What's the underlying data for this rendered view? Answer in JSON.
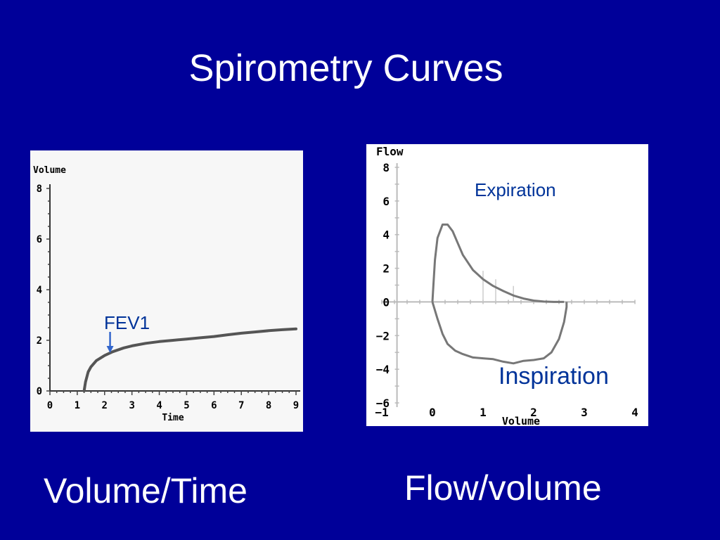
{
  "title": "Spirometry Curves",
  "captions": {
    "volume_time": "Volume/Time",
    "flow_volume": "Flow/volume"
  },
  "annotations": {
    "fev1": "FEV1",
    "expiration": "Expiration",
    "inspiration": "Inspiration"
  },
  "colors": {
    "background": "#000099",
    "annotation": "#003399",
    "arrow": "#3366cc",
    "trace": "#666666"
  },
  "chart_data": [
    {
      "type": "line",
      "xlabel": "Time",
      "ylabel": "Volume",
      "xlim": [
        0,
        9
      ],
      "ylim": [
        0,
        8
      ],
      "x_ticks": [
        0,
        1,
        2,
        3,
        4,
        5,
        6,
        7,
        8,
        9
      ],
      "y_ticks": [
        0,
        2,
        4,
        6,
        8
      ],
      "grid": false,
      "series": [
        {
          "x": [
            1.25,
            1.3,
            1.4,
            1.5,
            1.7,
            2.0,
            2.3,
            2.7,
            3.0,
            3.5,
            4.0,
            4.5,
            5.0,
            5.5,
            6.0,
            6.5,
            7.0,
            7.5,
            8.0,
            8.5,
            9.0
          ],
          "values": [
            0,
            0.35,
            0.75,
            0.95,
            1.2,
            1.4,
            1.55,
            1.7,
            1.78,
            1.88,
            1.95,
            2.0,
            2.05,
            2.1,
            2.15,
            2.22,
            2.28,
            2.33,
            2.38,
            2.42,
            2.45
          ]
        }
      ],
      "markers": [
        {
          "x": 2.2,
          "y": 1.5
        }
      ]
    },
    {
      "type": "line",
      "xlabel": "Volume",
      "ylabel": "Flow",
      "xlim": [
        -1,
        4
      ],
      "ylim": [
        -6,
        8
      ],
      "x_ticks": [
        -1,
        0,
        1,
        2,
        3,
        4
      ],
      "y_ticks": [
        -6,
        -4,
        -2,
        0,
        2,
        4,
        6,
        8
      ],
      "grid": false,
      "series": [
        {
          "x": [
            0.0,
            0.02,
            0.05,
            0.1,
            0.2,
            0.3,
            0.4,
            0.5,
            0.6,
            0.8,
            1.0,
            1.2,
            1.4,
            1.6,
            1.8,
            2.0,
            2.2,
            2.4,
            2.6
          ],
          "values": [
            0,
            1.0,
            2.5,
            3.8,
            4.6,
            4.6,
            4.2,
            3.5,
            2.8,
            1.9,
            1.35,
            0.95,
            0.65,
            0.38,
            0.2,
            0.08,
            0.02,
            0.0,
            0.0
          ]
        },
        {
          "x": [
            0.0,
            0.1,
            0.2,
            0.3,
            0.45,
            0.6,
            0.8,
            1.0,
            1.2,
            1.4,
            1.6,
            1.8,
            2.0,
            2.2,
            2.35,
            2.5,
            2.6,
            2.65,
            2.65
          ],
          "values": [
            0,
            -1.0,
            -1.9,
            -2.5,
            -2.9,
            -3.1,
            -3.3,
            -3.35,
            -3.4,
            -3.55,
            -3.65,
            -3.5,
            -3.45,
            -3.35,
            -3.0,
            -2.2,
            -1.2,
            -0.3,
            0
          ]
        }
      ]
    }
  ]
}
